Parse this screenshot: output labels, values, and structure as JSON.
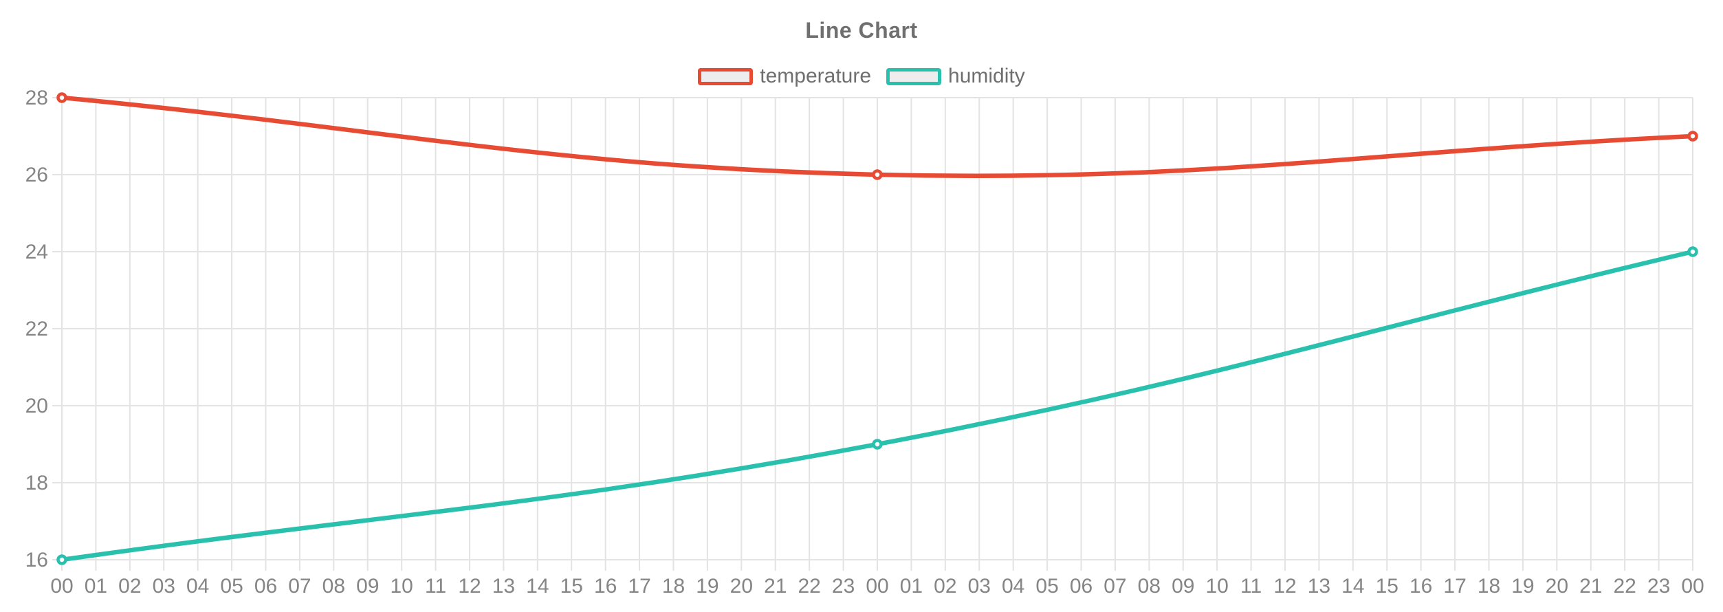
{
  "page": {
    "background": "#ffffff"
  },
  "chart": {
    "title": "Line Chart"
  },
  "legend": {
    "position": "top",
    "box_fill": "#ededed",
    "items": [
      {
        "label": "temperature",
        "color": "#e74b33"
      },
      {
        "label": "humidity",
        "color": "#29c1ae"
      }
    ]
  },
  "chart_data": {
    "type": "line",
    "title": "Line Chart",
    "x_labels": [
      "00",
      "01",
      "02",
      "03",
      "04",
      "05",
      "06",
      "07",
      "08",
      "09",
      "10",
      "11",
      "12",
      "13",
      "14",
      "15",
      "16",
      "17",
      "18",
      "19",
      "20",
      "21",
      "22",
      "23",
      "00",
      "01",
      "02",
      "03",
      "04",
      "05",
      "06",
      "07",
      "08",
      "09",
      "10",
      "11",
      "12",
      "13",
      "14",
      "15",
      "16",
      "17",
      "18",
      "19",
      "20",
      "21",
      "22",
      "23",
      "00"
    ],
    "y_ticks": [
      16,
      18,
      20,
      22,
      24,
      26,
      28
    ],
    "ylim": [
      16,
      28
    ],
    "grid": true,
    "legend_position": "top",
    "line_tension": 0.4,
    "series": [
      {
        "name": "temperature",
        "color": "#e74b33",
        "point_fill": "#ffffff",
        "points": [
          {
            "x_index": 0,
            "x_label": "00",
            "y": 28
          },
          {
            "x_index": 24,
            "x_label": "00",
            "y": 26
          },
          {
            "x_index": 48,
            "x_label": "00",
            "y": 27
          }
        ]
      },
      {
        "name": "humidity",
        "color": "#29c1ae",
        "point_fill": "#ffffff",
        "points": [
          {
            "x_index": 0,
            "x_label": "00",
            "y": 16
          },
          {
            "x_index": 24,
            "x_label": "00",
            "y": 19
          },
          {
            "x_index": 48,
            "x_label": "00",
            "y": 24
          }
        ]
      }
    ],
    "colors": {
      "grid": "#e3e3e3",
      "tick_text": "#858585",
      "title_text": "#6f6f6f"
    }
  }
}
